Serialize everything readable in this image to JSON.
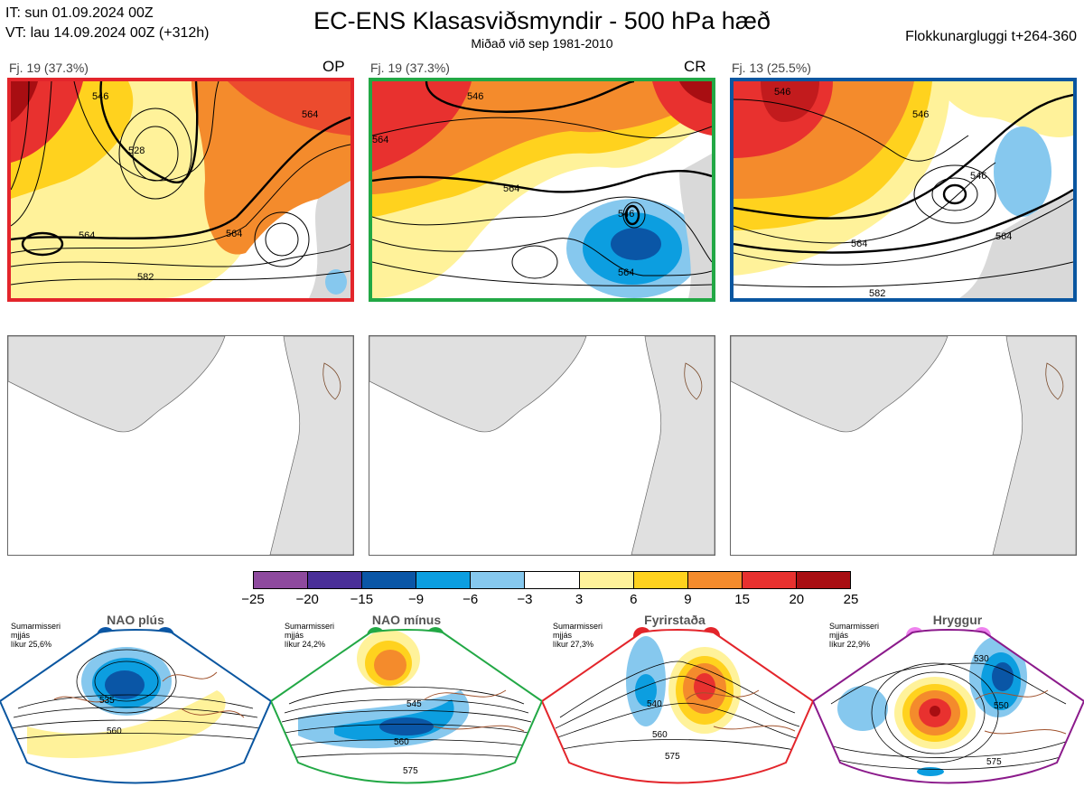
{
  "header": {
    "it": "IT: sun 01.09.2024 00Z",
    "vt": "VT: lau 14.09.2024 00Z  (+312h)",
    "title": "EC-ENS Klasasviðsmyndir - 500 hPa hæð",
    "subtitle": "Miðað við sep 1981-2010",
    "window": "Flokkunargluggi t+264-360"
  },
  "panels": [
    {
      "label": "Fj. 19 (37.3%)",
      "tag": "OP",
      "border_color": "#e3252b",
      "contours": [
        "564",
        "564",
        "564",
        "582",
        "546",
        "528"
      ]
    },
    {
      "label": "Fj. 19 (37.3%)",
      "tag": "CR",
      "border_color": "#22a845",
      "contours": [
        "564",
        "564",
        "546",
        "564",
        "546"
      ]
    },
    {
      "label": "Fj. 13 (25.5%)",
      "tag": "",
      "border_color": "#0a56a0",
      "contours": [
        "546",
        "546",
        "564",
        "564",
        "582",
        "546"
      ]
    }
  ],
  "colorbar": {
    "colors": [
      "#8e4a9e",
      "#4a2f98",
      "#0a56a6",
      "#0c9ee0",
      "#86c8ee",
      "#ffffff",
      "#fff29a",
      "#ffd21e",
      "#f48b2c",
      "#e8312f",
      "#a80e12"
    ],
    "ticks": [
      "−25",
      "−20",
      "−15",
      "−9",
      "−6",
      "−3",
      "3",
      "6",
      "9",
      "15",
      "20",
      "25"
    ]
  },
  "regimes": [
    {
      "title": "NAO plús",
      "season": "Sumarmisseri",
      "avg": "mjjás",
      "prob": "líkur 25,6%",
      "dot_color": "#0a56a6",
      "outline": "#0a56a0",
      "contours": [
        "535",
        "560"
      ]
    },
    {
      "title": "NAO mínus",
      "season": "Sumarmisseri",
      "avg": "mjjás",
      "prob": "líkur 24,2%",
      "dot_color": "#22a845",
      "outline": "#22a845",
      "contours": [
        "545",
        "560",
        "575"
      ]
    },
    {
      "title": "Fyrirstaða",
      "season": "Sumarmisseri",
      "avg": "mjjás",
      "prob": "líkur 27,3%",
      "dot_color": "#e3252b",
      "outline": "#e3252b",
      "contours": [
        "540",
        "560",
        "575"
      ]
    },
    {
      "title": "Hryggur",
      "season": "Sumarmisseri",
      "avg": "mjjás",
      "prob": "líkur 22,9%",
      "dot_color": "#ee82ee",
      "outline": "#8b1a8b",
      "contours": [
        "530",
        "550",
        "575"
      ]
    }
  ]
}
